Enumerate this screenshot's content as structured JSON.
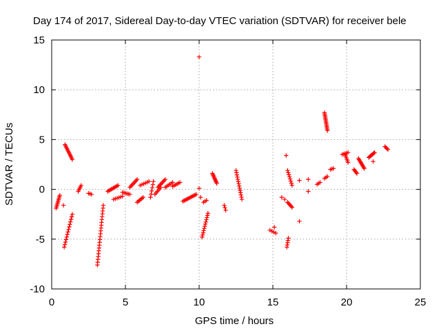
{
  "chart_data": {
    "type": "scatter",
    "title": "Day 174 of 2017, Sidereal Day-to-day VTEC variation (SDTVAR) for receiver bele",
    "xlabel": "GPS time / hours",
    "ylabel": "SDTVAR / TECUs",
    "xlim": [
      0,
      25
    ],
    "ylim": [
      -10,
      15
    ],
    "x_ticks": [
      0,
      5,
      10,
      15,
      20,
      25
    ],
    "y_ticks": [
      -10,
      -5,
      0,
      5,
      10,
      15
    ],
    "x_tick_labels": [
      "0",
      "5",
      "10",
      "15",
      "20",
      "25"
    ],
    "y_tick_labels": [
      "-10",
      "-5",
      "0",
      "5",
      "10",
      "15"
    ],
    "grid": true,
    "marker": "+",
    "series_color": "#ff0000",
    "series": [
      {
        "name": "SDTVAR",
        "segments": [
          {
            "x0": 0.3,
            "x1": 0.55,
            "y0": -1.9,
            "y1": -0.6,
            "n": 10
          },
          {
            "x0": 0.8,
            "x1": 0.85,
            "y0": -1.6,
            "y1": -1.6,
            "n": 1
          },
          {
            "x0": 0.9,
            "x1": 1.4,
            "y0": 4.5,
            "y1": 3.0,
            "n": 12
          },
          {
            "x0": 0.85,
            "x1": 1.4,
            "y0": -5.8,
            "y1": -2.5,
            "n": 14
          },
          {
            "x0": 1.8,
            "x1": 2.0,
            "y0": -0.2,
            "y1": 0.4,
            "n": 5
          },
          {
            "x0": 2.5,
            "x1": 2.7,
            "y0": -0.4,
            "y1": -0.5,
            "n": 3
          },
          {
            "x0": 3.1,
            "x1": 3.5,
            "y0": -7.6,
            "y1": -1.6,
            "n": 22
          },
          {
            "x0": 3.8,
            "x1": 4.5,
            "y0": -0.2,
            "y1": 0.4,
            "n": 10
          },
          {
            "x0": 4.2,
            "x1": 4.8,
            "y0": -1.0,
            "y1": -0.7,
            "n": 6
          },
          {
            "x0": 4.8,
            "x1": 5.3,
            "y0": -0.3,
            "y1": -0.5,
            "n": 6
          },
          {
            "x0": 5.3,
            "x1": 5.8,
            "y0": 0.2,
            "y1": 1.0,
            "n": 8
          },
          {
            "x0": 5.8,
            "x1": 6.2,
            "y0": -1.3,
            "y1": -0.8,
            "n": 6
          },
          {
            "x0": 6.0,
            "x1": 6.6,
            "y0": 0.4,
            "y1": 0.8,
            "n": 6
          },
          {
            "x0": 6.7,
            "x1": 6.9,
            "y0": -0.8,
            "y1": 0.8,
            "n": 6
          },
          {
            "x0": 7.0,
            "x1": 7.4,
            "y0": -0.5,
            "y1": 0.2,
            "n": 6
          },
          {
            "x0": 7.2,
            "x1": 7.7,
            "y0": 0.2,
            "y1": 1.0,
            "n": 8
          },
          {
            "x0": 7.7,
            "x1": 8.2,
            "y0": 0.2,
            "y1": 0.7,
            "n": 6
          },
          {
            "x0": 8.2,
            "x1": 8.7,
            "y0": 0.3,
            "y1": 0.7,
            "n": 6
          },
          {
            "x0": 8.9,
            "x1": 9.8,
            "y0": -1.2,
            "y1": -0.5,
            "n": 12
          },
          {
            "x0": 10.0,
            "x1": 10.1,
            "y0": 0.1,
            "y1": 0.1,
            "n": 1
          },
          {
            "x0": 10.0,
            "x1": 10.1,
            "y0": 13.3,
            "y1": 13.3,
            "n": 1
          },
          {
            "x0": 10.1,
            "x1": 10.2,
            "y0": -0.8,
            "y1": -0.8,
            "n": 1
          },
          {
            "x0": 10.3,
            "x1": 10.5,
            "y0": -1.3,
            "y1": -1.1,
            "n": 3
          },
          {
            "x0": 10.2,
            "x1": 10.6,
            "y0": -4.8,
            "y1": -2.4,
            "n": 12
          },
          {
            "x0": 10.9,
            "x1": 11.2,
            "y0": 1.6,
            "y1": 0.6,
            "n": 10
          },
          {
            "x0": 11.7,
            "x1": 11.8,
            "y0": -1.6,
            "y1": -2.1,
            "n": 3
          },
          {
            "x0": 12.5,
            "x1": 12.9,
            "y0": 1.9,
            "y1": -1.0,
            "n": 14
          },
          {
            "x0": 14.8,
            "x1": 15.2,
            "y0": -4.1,
            "y1": -4.4,
            "n": 4
          },
          {
            "x0": 15.1,
            "x1": 15.2,
            "y0": -3.8,
            "y1": -3.8,
            "n": 1
          },
          {
            "x0": 15.6,
            "x1": 15.8,
            "y0": -0.8,
            "y1": -1.0,
            "n": 2
          },
          {
            "x0": 15.9,
            "x1": 16.0,
            "y0": 3.4,
            "y1": 3.4,
            "n": 1
          },
          {
            "x0": 16.0,
            "x1": 16.3,
            "y0": 1.9,
            "y1": 0.4,
            "n": 8
          },
          {
            "x0": 16.0,
            "x1": 16.3,
            "y0": -1.3,
            "y1": -1.8,
            "n": 6
          },
          {
            "x0": 15.95,
            "x1": 16.05,
            "y0": -5.8,
            "y1": -4.9,
            "n": 5
          },
          {
            "x0": 16.8,
            "x1": 16.9,
            "y0": 0.9,
            "y1": 0.9,
            "n": 1
          },
          {
            "x0": 16.8,
            "x1": 16.9,
            "y0": -3.2,
            "y1": -3.2,
            "n": 1
          },
          {
            "x0": 17.4,
            "x1": 17.5,
            "y0": 1.0,
            "y1": 1.0,
            "n": 1
          },
          {
            "x0": 17.4,
            "x1": 17.5,
            "y0": -0.2,
            "y1": -0.2,
            "n": 1
          },
          {
            "x0": 18.0,
            "x1": 18.2,
            "y0": 0.5,
            "y1": 0.7,
            "n": 3
          },
          {
            "x0": 18.5,
            "x1": 18.7,
            "y0": 1.1,
            "y1": 1.3,
            "n": 3
          },
          {
            "x0": 18.5,
            "x1": 18.7,
            "y0": 7.7,
            "y1": 5.9,
            "n": 14
          },
          {
            "x0": 18.9,
            "x1": 19.1,
            "y0": 2.0,
            "y1": 2.1,
            "n": 3
          },
          {
            "x0": 19.7,
            "x1": 20.1,
            "y0": 3.5,
            "y1": 3.7,
            "n": 5
          },
          {
            "x0": 19.9,
            "x1": 20.1,
            "y0": 3.5,
            "y1": 2.7,
            "n": 6
          },
          {
            "x0": 20.5,
            "x1": 20.7,
            "y0": 2.0,
            "y1": 1.6,
            "n": 5
          },
          {
            "x0": 20.8,
            "x1": 21.2,
            "y0": 3.1,
            "y1": 2.1,
            "n": 10
          },
          {
            "x0": 21.5,
            "x1": 21.9,
            "y0": 3.2,
            "y1": 3.7,
            "n": 8
          },
          {
            "x0": 21.8,
            "x1": 21.9,
            "y0": 2.8,
            "y1": 2.8,
            "n": 1
          },
          {
            "x0": 22.6,
            "x1": 22.8,
            "y0": 4.3,
            "y1": 4.0,
            "n": 4
          }
        ]
      }
    ]
  }
}
